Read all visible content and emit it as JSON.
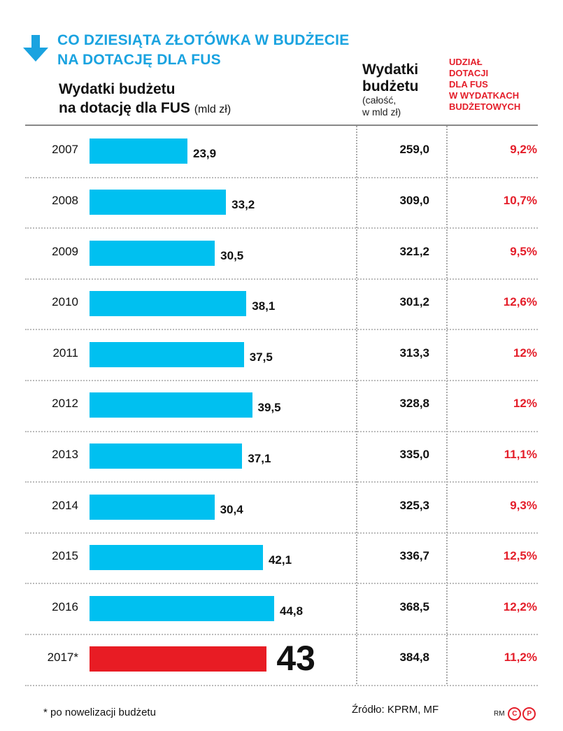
{
  "header": {
    "title_line1": "CO DZIESIĄTA ZŁOTÓWKA W BUDŻECIE",
    "title_line2": "NA DOTACJĘ DLA FUS",
    "arrow_icon": "arrow-down-icon",
    "accent_color": "#1aa3e0"
  },
  "columns": {
    "col1_line1": "Wydatki budżetu",
    "col1_line2": "na dotację dla FUS",
    "col1_unit": "(mld zł)",
    "col2_line1": "Wydatki",
    "col2_line2": "budżetu",
    "col2_line3": "(całość,",
    "col2_line4": "w mld zł)",
    "col3_lines": [
      "UDZIAŁ",
      "DOTACJI",
      "DLA FUS",
      "W WYDATKACH",
      "BUDŻETOWYCH"
    ]
  },
  "chart_data": {
    "type": "bar",
    "orientation": "horizontal",
    "title": "CO DZIESIĄTA ZŁOTÓWKA W BUDŻECIE NA DOTACJĘ DLA FUS",
    "xlabel": "Wydatki budżetu na dotację dla FUS (mld zł)",
    "categories": [
      "2007",
      "2008",
      "2009",
      "2010",
      "2011",
      "2012",
      "2013",
      "2014",
      "2015",
      "2016",
      "2017*"
    ],
    "values": [
      23.9,
      33.2,
      30.5,
      38.1,
      37.5,
      39.5,
      37.1,
      30.4,
      42.1,
      44.8,
      43
    ],
    "value_labels": [
      "23,9",
      "33,2",
      "30,5",
      "38,1",
      "37,5",
      "39,5",
      "37,1",
      "30,4",
      "42,1",
      "44,8",
      "43"
    ],
    "highlight_index": 10,
    "colors": {
      "bar": "#00c0f0",
      "highlight": "#e81c24"
    },
    "table_columns": [
      {
        "name": "Wydatki budżetu (całość, w mld zł)",
        "values": [
          "259,0",
          "309,0",
          "321,2",
          "301,2",
          "313,3",
          "328,8",
          "335,0",
          "325,3",
          "336,7",
          "368,5",
          "384,8"
        ]
      },
      {
        "name": "Udział dotacji dla FUS w wydatkach budżetowych",
        "values": [
          "9,2%",
          "10,7%",
          "9,5%",
          "12,6%",
          "12%",
          "12%",
          "11,1%",
          "9,3%",
          "12,5%",
          "12,2%",
          "11,2%"
        ]
      }
    ],
    "grid": false
  },
  "footer": {
    "footnote": "* po nowelizacji budżetu",
    "source": "Źródło: KPRM, MF",
    "credit": "RM",
    "credit_c": "C",
    "credit_p": "P"
  }
}
